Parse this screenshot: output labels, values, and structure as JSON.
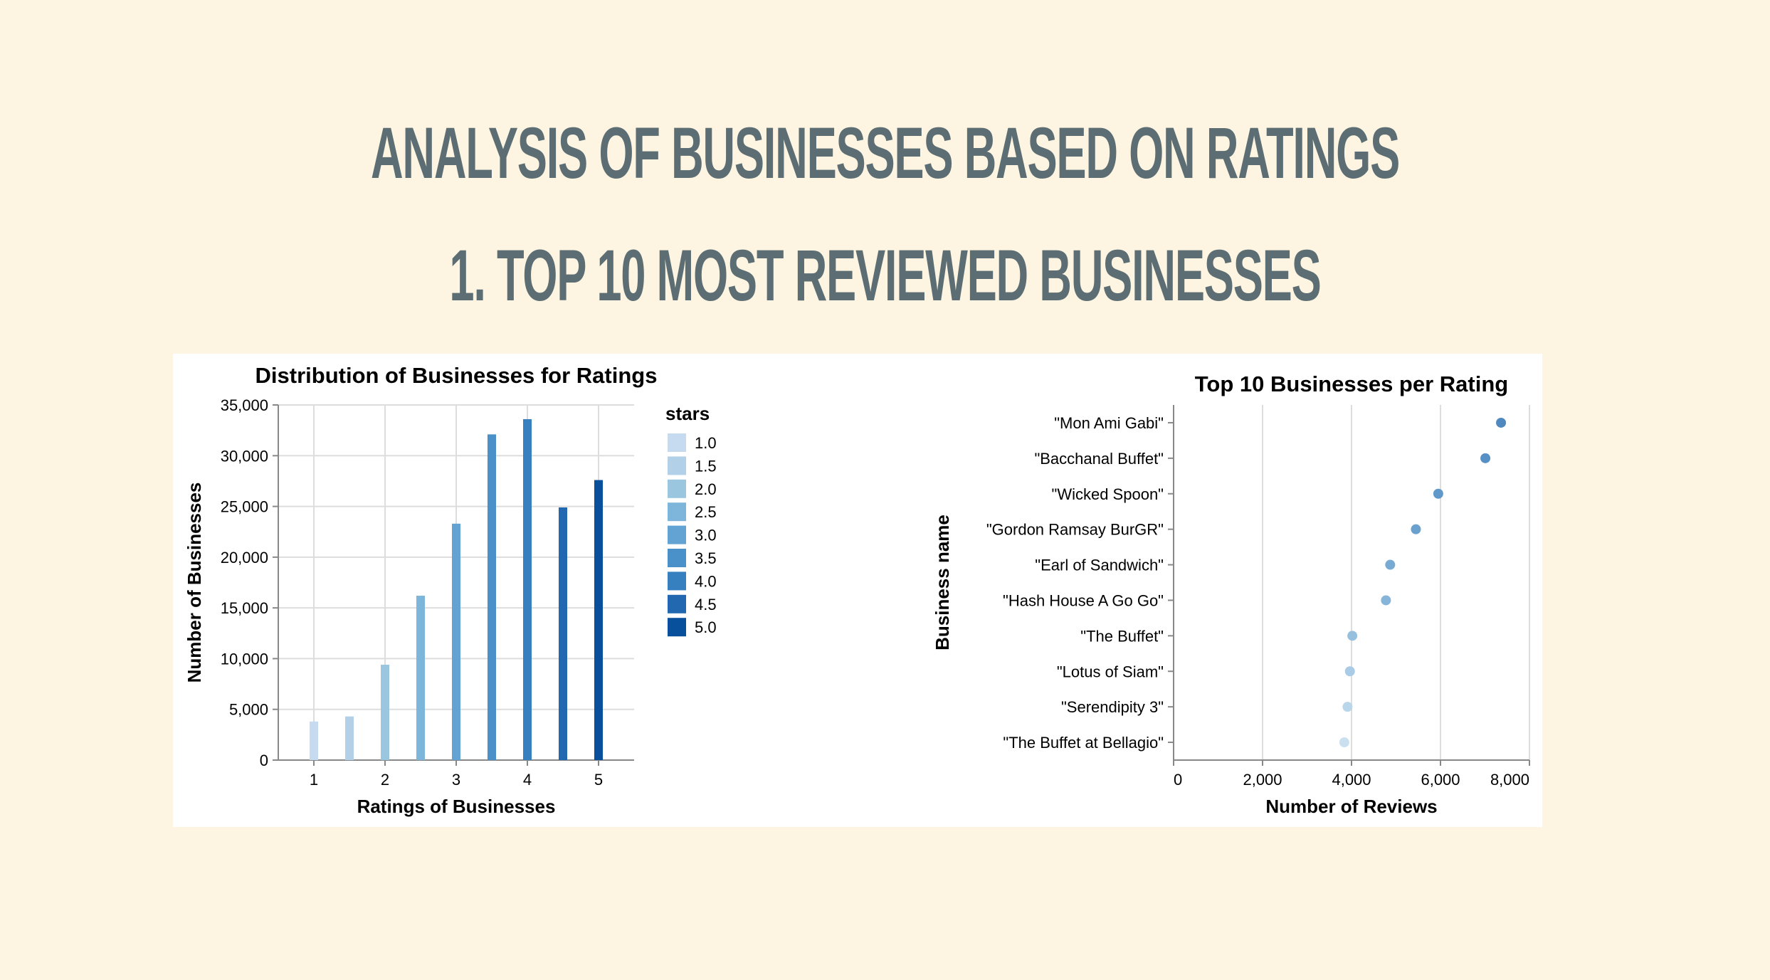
{
  "page": {
    "title": "ANALYSIS OF BUSINESSES BASED ON RATINGS",
    "subtitle": "1. TOP 10 MOST REVIEWED BUSINESSES"
  },
  "colors": {
    "background": "#fdf5e2",
    "heading": "#5c6e73",
    "panel": "#ffffff"
  },
  "chart_data": [
    {
      "type": "bar",
      "title": "Distribution of Businesses for Ratings",
      "xlabel": "Ratings of Businesses",
      "ylabel": "Number of Businesses",
      "x_ticks": [
        "1",
        "2",
        "3",
        "4",
        "5"
      ],
      "y_ticks": [
        "0",
        "5,000",
        "10,000",
        "15,000",
        "20,000",
        "25,000",
        "30,000",
        "35,000"
      ],
      "xlim": [
        0.5,
        5.5
      ],
      "ylim": [
        0,
        35000
      ],
      "grid": true,
      "legend": {
        "title": "stars",
        "placement": "right",
        "entries": [
          "1.0",
          "1.5",
          "2.0",
          "2.5",
          "3.0",
          "3.5",
          "4.0",
          "4.5",
          "5.0"
        ]
      },
      "bars": [
        {
          "x": 1.0,
          "value": 3800,
          "color": "#c6dbef"
        },
        {
          "x": 1.5,
          "value": 4300,
          "color": "#b2d1e8"
        },
        {
          "x": 2.0,
          "value": 9400,
          "color": "#9ac6e0"
        },
        {
          "x": 2.5,
          "value": 16200,
          "color": "#7db6da"
        },
        {
          "x": 3.0,
          "value": 23300,
          "color": "#62a3d3"
        },
        {
          "x": 3.5,
          "value": 32100,
          "color": "#4a91c9"
        },
        {
          "x": 4.0,
          "value": 33600,
          "color": "#3680c0"
        },
        {
          "x": 4.5,
          "value": 24900,
          "color": "#2268b0"
        },
        {
          "x": 5.0,
          "value": 27600,
          "color": "#08509c"
        }
      ]
    },
    {
      "type": "scatter",
      "title": "Top 10 Businesses per Rating",
      "xlabel": "Number of Reviews",
      "ylabel": "Business name",
      "x_ticks": [
        "0",
        "2,000",
        "4,000",
        "6,000",
        "8,000"
      ],
      "xlim": [
        0,
        8000
      ],
      "grid": true,
      "legend": {
        "title": "Business name",
        "placement": "right",
        "entries": [
          "3838",
          "3910",
          "3964",
          "4018",
          "4774",
          "4869",
          "5447",
          "5950",
          "7009",
          "7361"
        ]
      },
      "points": [
        {
          "name": "\"Mon Ami Gabi\"",
          "value": 7361,
          "color": "#5089c0"
        },
        {
          "name": "\"Bacchanal Buffet\"",
          "value": 7009,
          "color": "#5790c4"
        },
        {
          "name": "\"Wicked Spoon\"",
          "value": 5950,
          "color": "#6098c9"
        },
        {
          "name": "\"Gordon Ramsay BurGR\"",
          "value": 5447,
          "color": "#6ba1ce"
        },
        {
          "name": "\"Earl of Sandwich\"",
          "value": 4869,
          "color": "#78abd4"
        },
        {
          "name": "\"Hash House A Go Go\"",
          "value": 4774,
          "color": "#86b5d9"
        },
        {
          "name": "\"The Buffet\"",
          "value": 4018,
          "color": "#97c0df"
        },
        {
          "name": "\"Lotus of Siam\"",
          "value": 3964,
          "color": "#a9cbe5"
        },
        {
          "name": "\"Serendipity 3\"",
          "value": 3910,
          "color": "#bad6ea"
        },
        {
          "name": "\"The Buffet at Bellagio\"",
          "value": 3838,
          "color": "#cbe0ef"
        }
      ]
    }
  ]
}
